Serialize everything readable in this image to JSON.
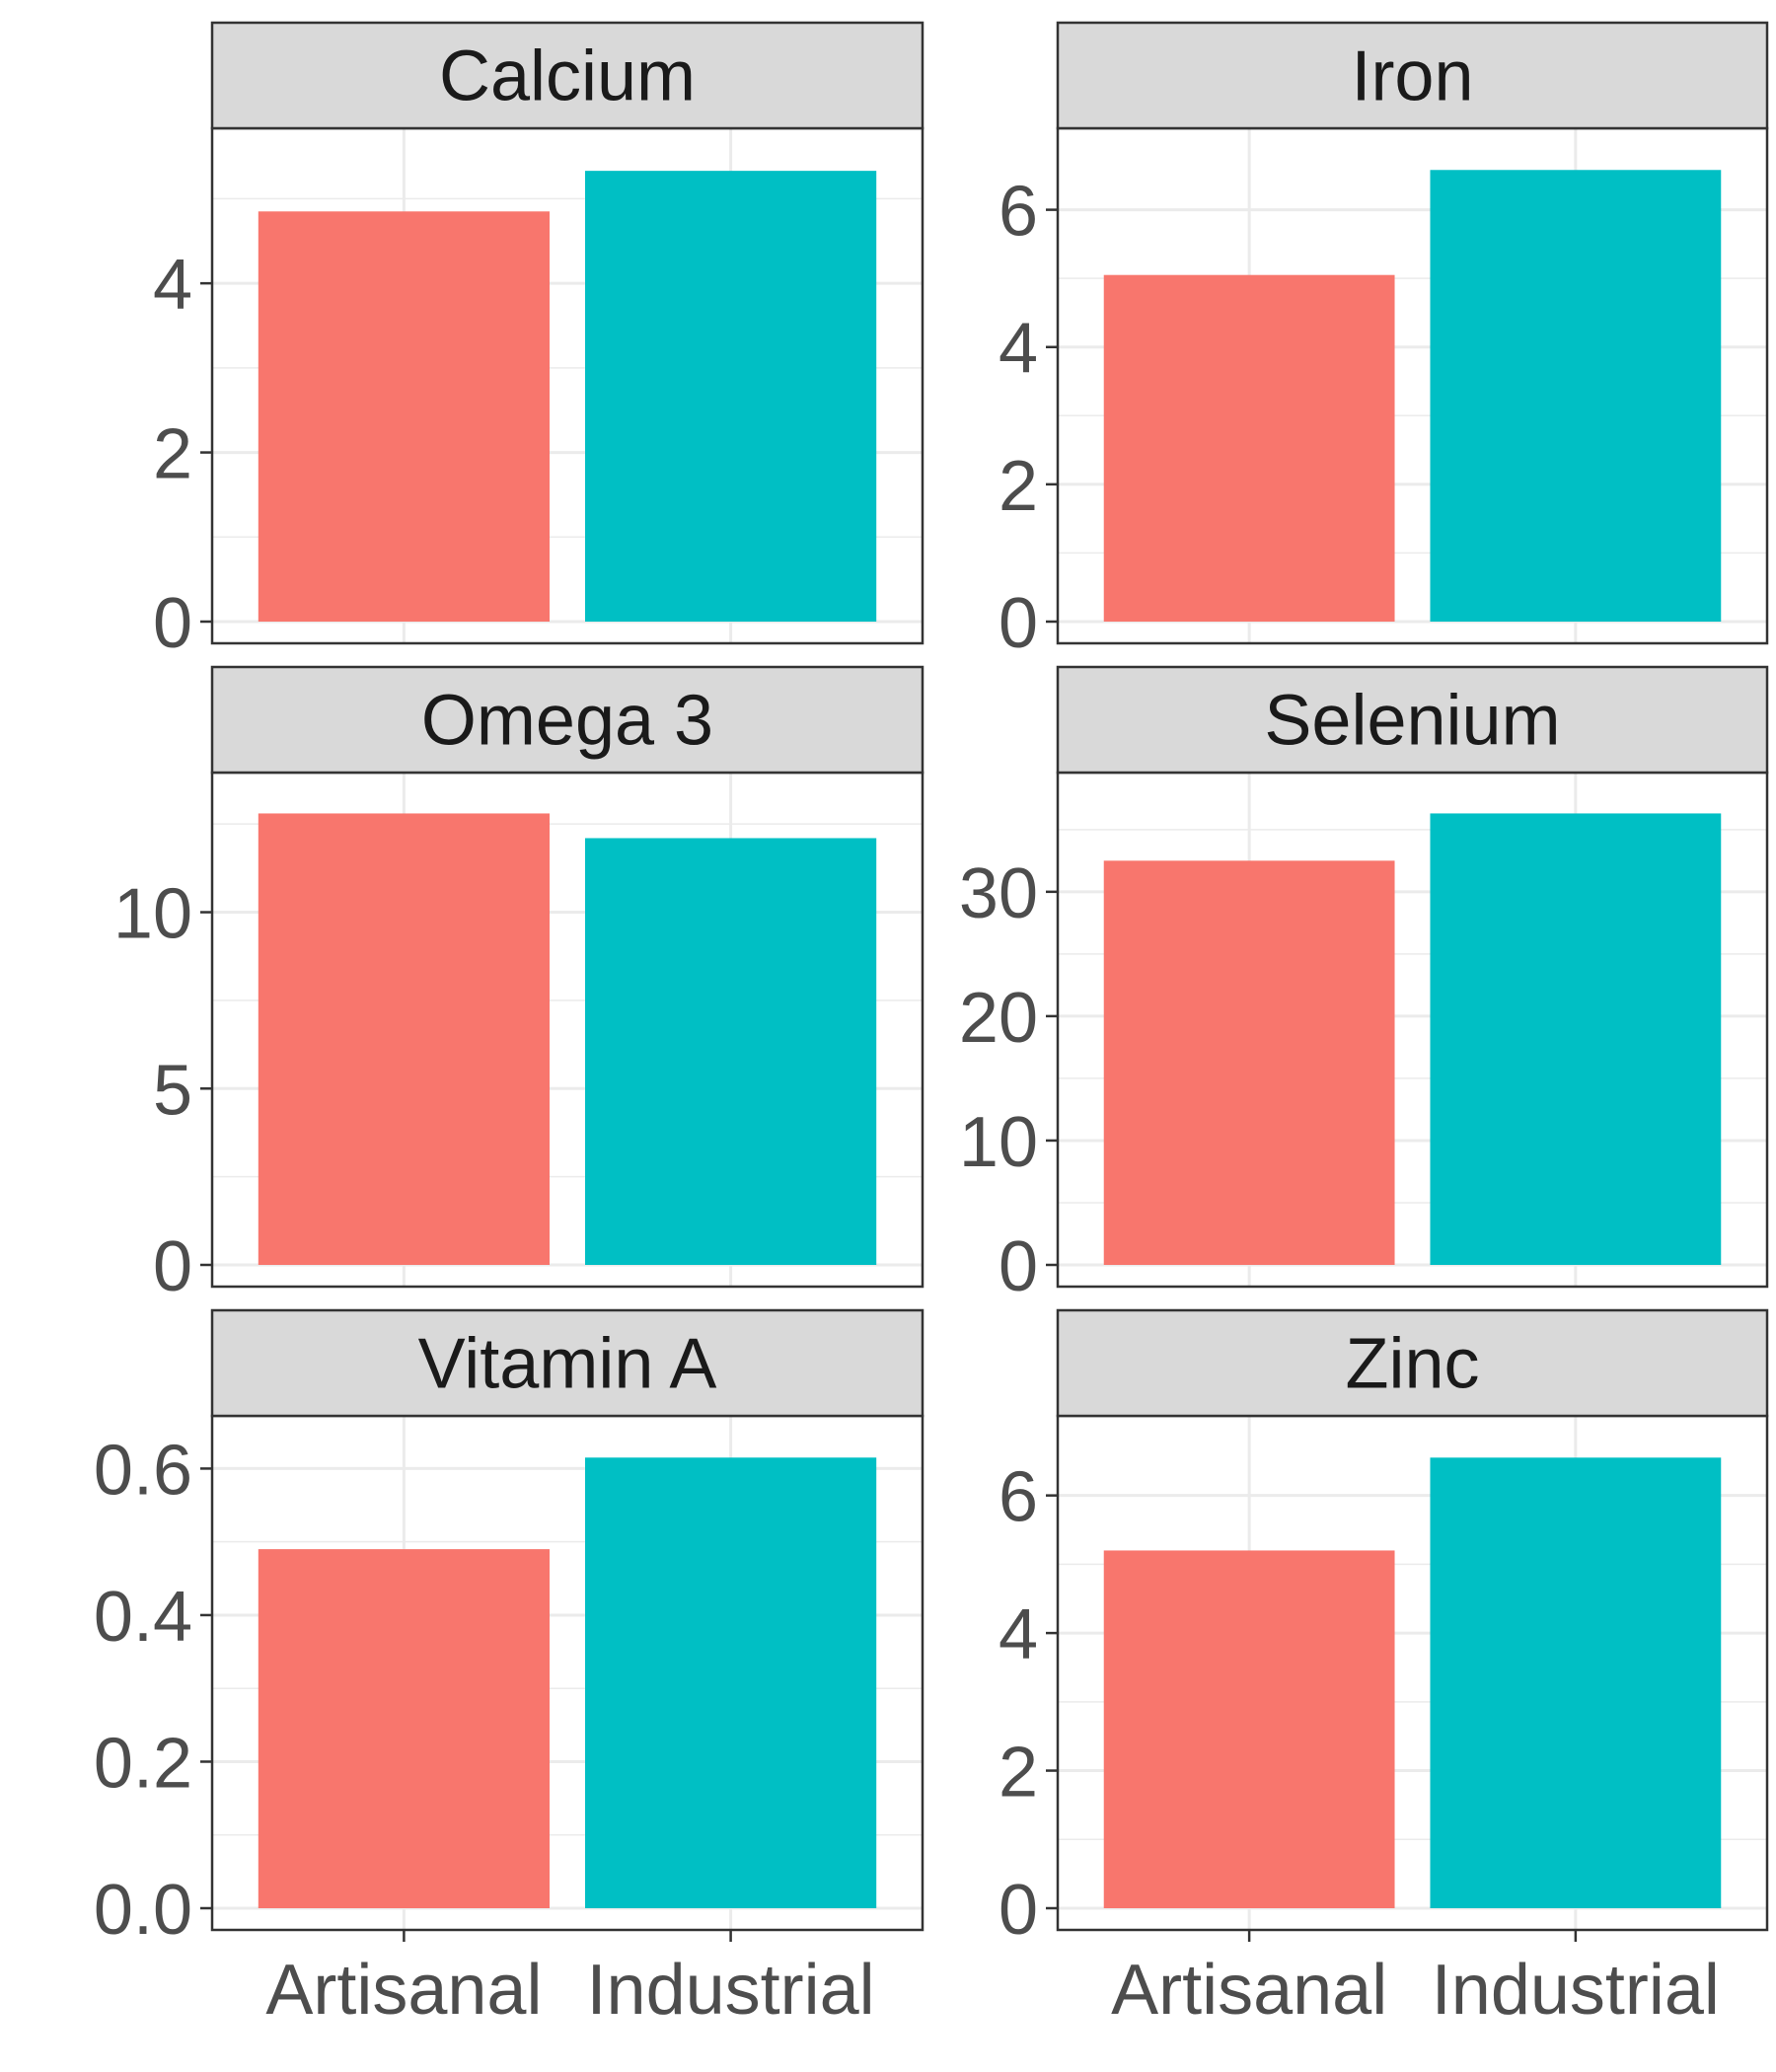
{
  "chart_data": [
    {
      "type": "bar",
      "title": "Calcium",
      "categories": [
        "Artisanal",
        "Industrial"
      ],
      "values": [
        4.85,
        5.33
      ],
      "ylim": [
        0,
        5.6
      ],
      "yticks": [
        "0",
        "2",
        "4"
      ],
      "ytick_values": [
        0,
        2,
        4
      ],
      "grid": true
    },
    {
      "type": "bar",
      "title": "Iron",
      "categories": [
        "Artisanal",
        "Industrial"
      ],
      "values": [
        5.05,
        6.58
      ],
      "ylim": [
        0,
        6.9
      ],
      "yticks": [
        "0",
        "2",
        "4",
        "6"
      ],
      "ytick_values": [
        0,
        2,
        4,
        6
      ],
      "grid": true
    },
    {
      "type": "bar",
      "title": "Omega 3",
      "categories": [
        "Artisanal",
        "Industrial"
      ],
      "values": [
        12.8,
        12.1
      ],
      "ylim": [
        0,
        13.4
      ],
      "yticks": [
        "0",
        "5",
        "10"
      ],
      "ytick_values": [
        0,
        5,
        10
      ],
      "grid": true
    },
    {
      "type": "bar",
      "title": "Selenium",
      "categories": [
        "Artisanal",
        "Industrial"
      ],
      "values": [
        32.5,
        36.3
      ],
      "ylim": [
        0,
        38.0
      ],
      "yticks": [
        "0",
        "10",
        "20",
        "30"
      ],
      "ytick_values": [
        0,
        10,
        20,
        30
      ],
      "grid": true
    },
    {
      "type": "bar",
      "title": "Vitamin A",
      "categories": [
        "Artisanal",
        "Industrial"
      ],
      "values": [
        0.49,
        0.615
      ],
      "ylim": [
        0,
        0.645
      ],
      "yticks": [
        "0.0",
        "0.2",
        "0.4",
        "0.6"
      ],
      "ytick_values": [
        0,
        0.2,
        0.4,
        0.6
      ],
      "grid": true
    },
    {
      "type": "bar",
      "title": "Zinc",
      "categories": [
        "Artisanal",
        "Industrial"
      ],
      "values": [
        5.2,
        6.55
      ],
      "ylim": [
        0,
        6.87
      ],
      "yticks": [
        "0",
        "2",
        "4",
        "6"
      ],
      "ytick_values": [
        0,
        2,
        4,
        6
      ],
      "grid": true
    }
  ],
  "colors": {
    "Artisanal": "#F8766D",
    "Industrial": "#00BFC4",
    "strip_bg": "#D9D9D9",
    "grid": "#EBEBEB",
    "border": "#333333"
  },
  "layout_note": "Faceted bar chart, 3 rows x 2 columns, shared x axis categories shown on bottom row"
}
